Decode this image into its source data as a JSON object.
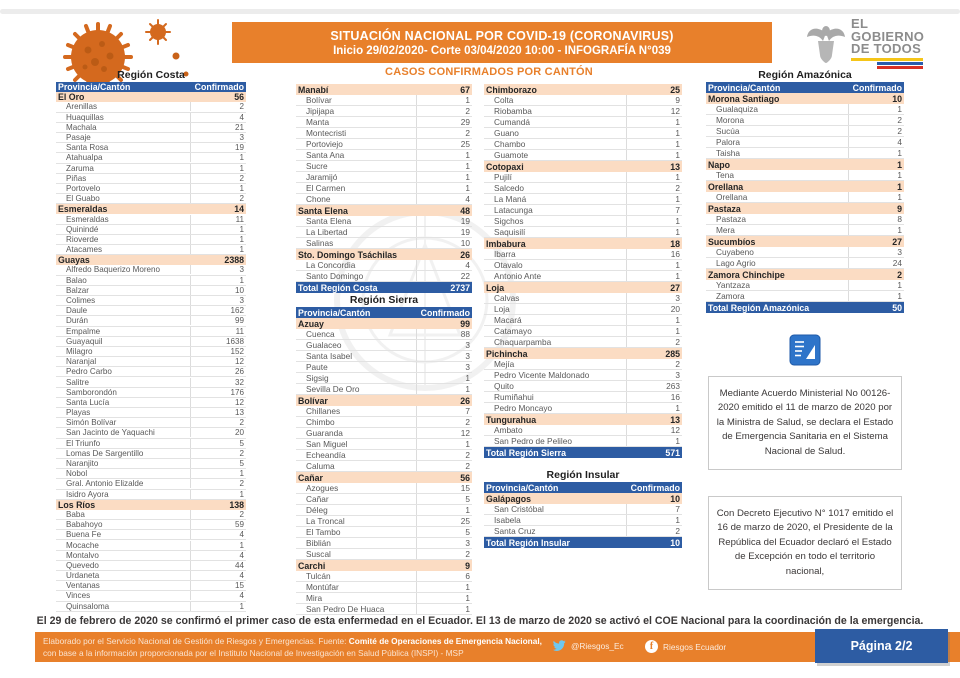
{
  "header": {
    "title": "SITUACIÓN NACIONAL POR  COVID-19 (CORONAVIRUS)",
    "subtitle": "Inicio 29/02/2020- Corte 03/04/2020 10:00  - INFOGRAFÍA N°039",
    "logo": {
      "lines": [
        "EL",
        "GOBIERNO",
        "DE TODOS"
      ]
    }
  },
  "center_title": "CASOS CONFIRMADOS POR CANTÓN",
  "col_headers": {
    "province": "Provincia/Cantón",
    "confirmed": "Confirmado"
  },
  "tables": {
    "costa_left": {
      "rows": [
        [
          "title",
          "Región Costa"
        ],
        [
          "header"
        ],
        [
          "p",
          "El Oro",
          "56"
        ],
        [
          "c",
          "Arenillas",
          "2"
        ],
        [
          "c",
          "Huaquillas",
          "4"
        ],
        [
          "c",
          "Machala",
          "21"
        ],
        [
          "c",
          "Pasaje",
          "3"
        ],
        [
          "c",
          "Santa Rosa",
          "19"
        ],
        [
          "c",
          "Atahualpa",
          "1"
        ],
        [
          "c",
          "Zaruma",
          "1"
        ],
        [
          "c",
          "Piñas",
          "2"
        ],
        [
          "c",
          "Portovelo",
          "1"
        ],
        [
          "c",
          "El Guabo",
          "2"
        ],
        [
          "p",
          "Esmeraldas",
          "14"
        ],
        [
          "c",
          "Esmeraldas",
          "11"
        ],
        [
          "c",
          "Quinindé",
          "1"
        ],
        [
          "c",
          "Rioverde",
          "1"
        ],
        [
          "c",
          "Atacames",
          "1"
        ],
        [
          "p",
          "Guayas",
          "2388"
        ],
        [
          "c",
          "Alfredo Baquerizo Moreno",
          "3"
        ],
        [
          "c",
          "Balao",
          "1"
        ],
        [
          "c",
          "Balzar",
          "10"
        ],
        [
          "c",
          "Colimes",
          "3"
        ],
        [
          "c",
          "Daule",
          "162"
        ],
        [
          "c",
          "Durán",
          "99"
        ],
        [
          "c",
          "Empalme",
          "11"
        ],
        [
          "c",
          "Guayaquil",
          "1638"
        ],
        [
          "c",
          "Milagro",
          "152"
        ],
        [
          "c",
          "Naranjal",
          "12"
        ],
        [
          "c",
          "Pedro Carbo",
          "26"
        ],
        [
          "c",
          "Salitre",
          "32"
        ],
        [
          "c",
          "Samborondón",
          "176"
        ],
        [
          "c",
          "Santa Lucía",
          "12"
        ],
        [
          "c",
          "Playas",
          "13"
        ],
        [
          "c",
          "Simón Bolívar",
          "2"
        ],
        [
          "c",
          "San Jacinto de Yaquachi",
          "20"
        ],
        [
          "c",
          "El Triunfo",
          "5"
        ],
        [
          "c",
          "Lomas De Sargentillo",
          "2"
        ],
        [
          "c",
          "Naranjito",
          "5"
        ],
        [
          "c",
          "Nobol",
          "1"
        ],
        [
          "c",
          "Gral. Antonio Elizalde",
          "2"
        ],
        [
          "c",
          "Isidro Ayora",
          "1"
        ],
        [
          "p",
          "Los Ríos",
          "138"
        ],
        [
          "c",
          "Baba",
          "2"
        ],
        [
          "c",
          "Babahoyo",
          "59"
        ],
        [
          "c",
          "Buena Fe",
          "4"
        ],
        [
          "c",
          "Mocache",
          "1"
        ],
        [
          "c",
          "Montalvo",
          "4"
        ],
        [
          "c",
          "Quevedo",
          "44"
        ],
        [
          "c",
          "Urdaneta",
          "4"
        ],
        [
          "c",
          "Ventanas",
          "15"
        ],
        [
          "c",
          "Vinces",
          "4"
        ],
        [
          "c",
          "Quinsaloma",
          "1"
        ]
      ]
    },
    "costa_sierra_mid": {
      "rows": [
        [
          "p",
          "Manabí",
          "67"
        ],
        [
          "c",
          "Bolívar",
          "1"
        ],
        [
          "c",
          "Jipijapa",
          "2"
        ],
        [
          "c",
          "Manta",
          "29"
        ],
        [
          "c",
          "Montecristi",
          "2"
        ],
        [
          "c",
          "Portoviejo",
          "25"
        ],
        [
          "c",
          "Santa Ana",
          "1"
        ],
        [
          "c",
          "Sucre",
          "1"
        ],
        [
          "c",
          "Jaramijó",
          "1"
        ],
        [
          "c",
          "El Carmen",
          "1"
        ],
        [
          "c",
          "Chone",
          "4"
        ],
        [
          "p",
          "Santa Elena",
          "48"
        ],
        [
          "c",
          "Santa Elena",
          "19"
        ],
        [
          "c",
          "La Libertad",
          "19"
        ],
        [
          "c",
          "Salinas",
          "10"
        ],
        [
          "p",
          "Sto. Domingo Tsáchilas",
          "26"
        ],
        [
          "c",
          "La Concordia",
          "4"
        ],
        [
          "c",
          "Santo Domingo",
          "22"
        ],
        [
          "total",
          "Total Región Costa",
          "2737"
        ],
        [
          "title",
          "Región Sierra"
        ],
        [
          "header"
        ],
        [
          "p",
          "Azuay",
          "99"
        ],
        [
          "c",
          "Cuenca",
          "88"
        ],
        [
          "c",
          "Gualaceo",
          "3"
        ],
        [
          "c",
          "Santa Isabel",
          "3"
        ],
        [
          "c",
          "Paute",
          "3"
        ],
        [
          "c",
          "Sigsig",
          "1"
        ],
        [
          "c",
          "Sevilla De Oro",
          "1"
        ],
        [
          "p",
          "Bolívar",
          "26"
        ],
        [
          "c",
          "Chillanes",
          "7"
        ],
        [
          "c",
          "Chimbo",
          "2"
        ],
        [
          "c",
          "Guaranda",
          "12"
        ],
        [
          "c",
          "San Miguel",
          "1"
        ],
        [
          "c",
          "Echeandía",
          "2"
        ],
        [
          "c",
          "Caluma",
          "2"
        ],
        [
          "p",
          "Cañar",
          "56"
        ],
        [
          "c",
          "Azogues",
          "15"
        ],
        [
          "c",
          "Cañar",
          "5"
        ],
        [
          "c",
          "Déleg",
          "1"
        ],
        [
          "c",
          "La Troncal",
          "25"
        ],
        [
          "c",
          "El Tambo",
          "5"
        ],
        [
          "c",
          "Biblián",
          "3"
        ],
        [
          "c",
          "Suscal",
          "2"
        ],
        [
          "p",
          "Carchi",
          "9"
        ],
        [
          "c",
          "Tulcán",
          "6"
        ],
        [
          "c",
          "Montúfar",
          "1"
        ],
        [
          "c",
          "Mira",
          "1"
        ],
        [
          "c",
          "San Pedro De Huaca",
          "1"
        ]
      ]
    },
    "sierra_insular_mid": {
      "rows": [
        [
          "p",
          "Chimborazo",
          "25"
        ],
        [
          "c",
          "Colta",
          "9"
        ],
        [
          "c",
          "Riobamba",
          "12"
        ],
        [
          "c",
          "Cumandá",
          "1"
        ],
        [
          "c",
          "Guano",
          "1"
        ],
        [
          "c",
          "Chambo",
          "1"
        ],
        [
          "c",
          "Guamote",
          "1"
        ],
        [
          "p",
          "Cotopaxi",
          "13"
        ],
        [
          "c",
          "Pujilí",
          "1"
        ],
        [
          "c",
          "Salcedo",
          "2"
        ],
        [
          "c",
          "La Maná",
          "1"
        ],
        [
          "c",
          "Latacunga",
          "7"
        ],
        [
          "c",
          "Sigchos",
          "1"
        ],
        [
          "c",
          "Saquisilí",
          "1"
        ],
        [
          "p",
          "Imbabura",
          "18"
        ],
        [
          "c",
          "Ibarra",
          "16"
        ],
        [
          "c",
          "Otavalo",
          "1"
        ],
        [
          "c",
          "Antonio Ante",
          "1"
        ],
        [
          "p",
          "Loja",
          "27"
        ],
        [
          "c",
          "Calvas",
          "3"
        ],
        [
          "c",
          "Loja",
          "20"
        ],
        [
          "c",
          "Macará",
          "1"
        ],
        [
          "c",
          "Catamayo",
          "1"
        ],
        [
          "c",
          "Chaquarpamba",
          "2"
        ],
        [
          "p",
          "Pichincha",
          "285"
        ],
        [
          "c",
          "Mejía",
          "2"
        ],
        [
          "c",
          "Pedro Vicente Maldonado",
          "3"
        ],
        [
          "c",
          "Quito",
          "263"
        ],
        [
          "c",
          "Rumiñahui",
          "16"
        ],
        [
          "c",
          "Pedro Moncayo",
          "1"
        ],
        [
          "p",
          "Tungurahua",
          "13"
        ],
        [
          "c",
          "Ambato",
          "12"
        ],
        [
          "c",
          "San Pedro de Pelileo",
          "1"
        ],
        [
          "total",
          "Total Región Sierra",
          "571"
        ],
        [
          "gap"
        ],
        [
          "title",
          "Región Insular"
        ],
        [
          "header"
        ],
        [
          "p",
          "Galápagos",
          "10"
        ],
        [
          "c",
          "San Cristóbal",
          "7"
        ],
        [
          "c",
          "Isabela",
          "1"
        ],
        [
          "c",
          "Santa Cruz",
          "2"
        ],
        [
          "total",
          "Total Región Insular",
          "10"
        ]
      ]
    },
    "amazonia_right": {
      "rows": [
        [
          "title",
          "Región Amazónica"
        ],
        [
          "header"
        ],
        [
          "p",
          "Morona Santiago",
          "10"
        ],
        [
          "c",
          "Gualaquiza",
          "1"
        ],
        [
          "c",
          "Morona",
          "2"
        ],
        [
          "c",
          "Sucúa",
          "2"
        ],
        [
          "c",
          "Palora",
          "4"
        ],
        [
          "c",
          "Taisha",
          "1"
        ],
        [
          "p",
          "Napo",
          "1"
        ],
        [
          "c",
          "Tena",
          "1"
        ],
        [
          "p",
          "Orellana",
          "1"
        ],
        [
          "c",
          "Orellana",
          "1"
        ],
        [
          "p",
          "Pastaza",
          "9"
        ],
        [
          "c",
          "Pastaza",
          "8"
        ],
        [
          "c",
          "Mera",
          "1"
        ],
        [
          "p",
          "Sucumbíos",
          "27"
        ],
        [
          "c",
          "Cuyabeno",
          "3"
        ],
        [
          "c",
          "Lago Agrio",
          "24"
        ],
        [
          "p",
          "Zamora Chinchipe",
          "2"
        ],
        [
          "c",
          "Yantzaza",
          "1"
        ],
        [
          "c",
          "Zamora",
          "1"
        ],
        [
          "total",
          "Total Región Amazónica",
          "50"
        ]
      ]
    }
  },
  "notes": {
    "ministerial": "Mediante Acuerdo Ministerial No 00126-2020 emitido el 11 de marzo de 2020 por la Ministra de Salud, se declara el Estado de Emergencia Sanitaria en el Sistema Nacional de Salud.",
    "decreto": "Con Decreto Ejecutivo N° 1017 emitido el 16 de marzo de 2020, el Presidente de la República del Ecuador declaró el Estado de Excepción en todo el territorio nacional,"
  },
  "milestone": "El 29 de febrero de 2020 se confirmó el primer caso de esta enfermedad en el Ecuador. El 13 de marzo de 2020 se activó el COE Nacional para la coordinación de la emergencia.",
  "footer": {
    "line1_normal": "Elaborado por el Servicio Nacional de Gestión de Riesgos y Emergencias. Fuente: ",
    "line1_bold": "Comité de Operaciones de Emergencia Nacional,",
    "line2": "con base a la información proporcionada por el Instituto Nacional de Investigación en Salud Pública (INSPI) - MSP",
    "twitter_handle": "@Riesgos_Ec",
    "facebook_handle": "Riesgos Ecuador",
    "page_label": "Página 2/2"
  },
  "colors": {
    "accent_orange": "#E8802B",
    "header_blue": "#2D5CA3",
    "province_row_bg": "#FBDCC3",
    "twitter_blue": "#6EC8F0",
    "flag_yellow": "#F5C518",
    "flag_blue": "#2B5CAD",
    "flag_red": "#D93025"
  }
}
